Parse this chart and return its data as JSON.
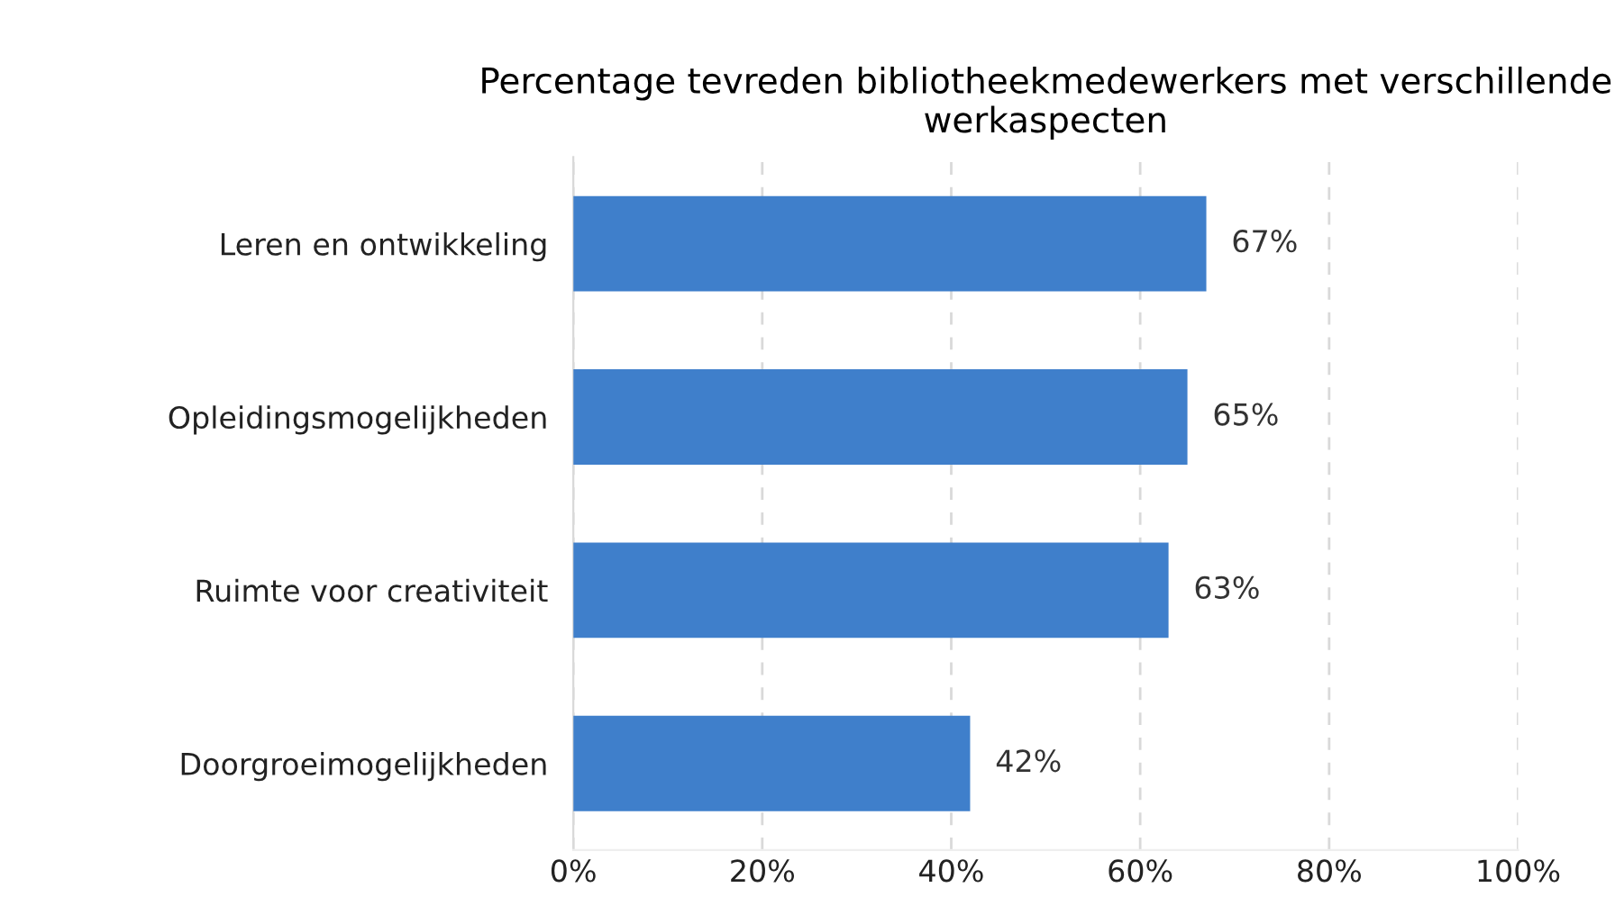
{
  "chart_data": {
    "type": "bar",
    "orientation": "horizontal",
    "title": "Percentage tevreden bibliotheekmedewerkers met verschillende werkaspecten",
    "categories": [
      "Leren en ontwikkeling",
      "Opleidingsmogelijkheden",
      "Ruimte voor creativiteit",
      "Doorgroeimogelijkheden"
    ],
    "values": [
      67,
      65,
      63,
      42
    ],
    "color": "#3f7fcb",
    "value_labels": [
      "67%",
      "65%",
      "63%",
      "42%"
    ],
    "xlim": [
      0,
      100
    ],
    "xticks": [
      {
        "value": 0,
        "label": "0%"
      },
      {
        "value": 20,
        "label": "20%"
      },
      {
        "value": 40,
        "label": "40%"
      },
      {
        "value": 60,
        "label": "60%"
      },
      {
        "value": 80,
        "label": "80%"
      },
      {
        "value": 100,
        "label": "100%"
      }
    ],
    "grid": "x"
  }
}
